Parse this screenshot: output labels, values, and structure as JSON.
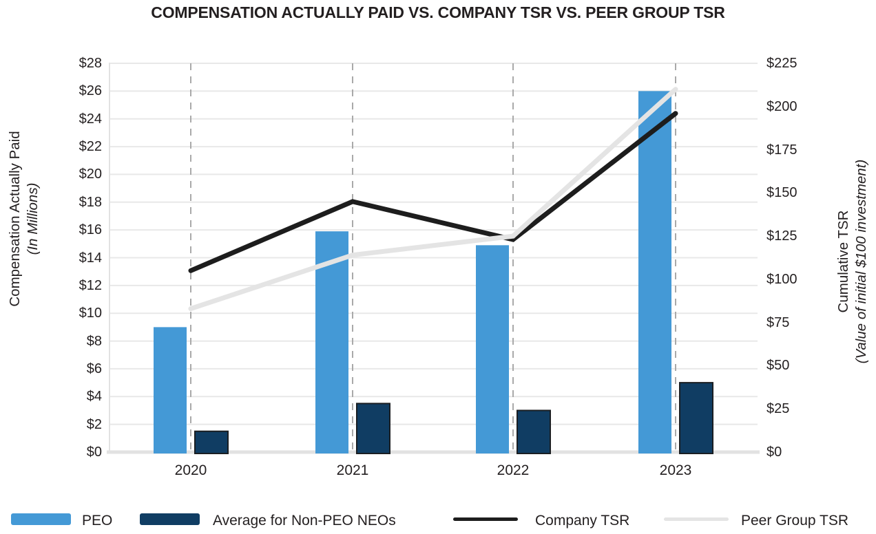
{
  "title": "COMPENSATION ACTUALLY PAID VS. COMPANY TSR VS. PEER GROUP TSR",
  "left_axis": {
    "title": "Compensation Actually Paid",
    "subtitle": "(In Millions)",
    "tick_labels": [
      "$0",
      "$2",
      "$4",
      "$6",
      "$8",
      "$10",
      "$12",
      "$14",
      "$16",
      "$18",
      "$20",
      "$22",
      "$24",
      "$26",
      "$28"
    ]
  },
  "right_axis": {
    "title": "Cumulative TSR",
    "subtitle": "(Value of initial $100 investment)",
    "tick_labels": [
      "$0",
      "$25",
      "$50",
      "$75",
      "$100",
      "$125",
      "$150",
      "$175",
      "$200",
      "$225"
    ]
  },
  "x_axis": {
    "labels": [
      "2020",
      "2021",
      "2022",
      "2023"
    ]
  },
  "legend": {
    "items": [
      {
        "label": "PEO",
        "swatch": "bar",
        "color": "#4499D6"
      },
      {
        "label": "Average for Non-PEO NEOs",
        "swatch": "bar",
        "color": "#103D63"
      },
      {
        "label": "Company TSR",
        "swatch": "line",
        "color": "#1D1D1D"
      },
      {
        "label": "Peer Group TSR",
        "swatch": "line",
        "color": "#E4E4E4"
      }
    ]
  },
  "colors": {
    "peo_bar": "#4499D6",
    "non_peo_bar": "#103D63",
    "non_peo_bar_border": "#1A1E22",
    "company_tsr_line": "#1D1D1D",
    "peer_tsr_line": "#E4E4E4",
    "gridline": "#E8E8E8",
    "axis_line": "#E2E2E2",
    "dashed_guide": "#A9A9A9",
    "text": "#231F20"
  },
  "chart_data": {
    "type": "bar+line",
    "title": "COMPENSATION ACTUALLY PAID VS. COMPANY TSR VS. PEER GROUP TSR",
    "categories": [
      "2020",
      "2021",
      "2022",
      "2023"
    ],
    "series": [
      {
        "name": "PEO",
        "type": "bar",
        "axis": "left",
        "values": [
          9.0,
          15.9,
          14.9,
          26.0
        ],
        "color": "#4499D6"
      },
      {
        "name": "Average for Non-PEO NEOs",
        "type": "bar",
        "axis": "left",
        "values": [
          1.5,
          3.5,
          3.0,
          5.0
        ],
        "color": "#103D63",
        "border": "#1A1E22"
      },
      {
        "name": "Company TSR",
        "type": "line",
        "axis": "right",
        "values": [
          105,
          145,
          123,
          196
        ],
        "color": "#1D1D1D"
      },
      {
        "name": "Peer Group TSR",
        "type": "line",
        "axis": "right",
        "values": [
          83,
          114,
          125,
          210
        ],
        "color": "#E4E4E4"
      }
    ],
    "left_axis_label": "Compensation Actually Paid (In Millions)",
    "right_axis_label": "Cumulative TSR (Value of initial $100 investment)",
    "left_ylim": [
      0,
      28
    ],
    "left_tick_step": 2,
    "right_ylim": [
      0,
      225
    ],
    "right_tick_step": 25,
    "grid": "horizontal",
    "vertical_guides": "dashed at each category",
    "legend_position": "bottom"
  }
}
